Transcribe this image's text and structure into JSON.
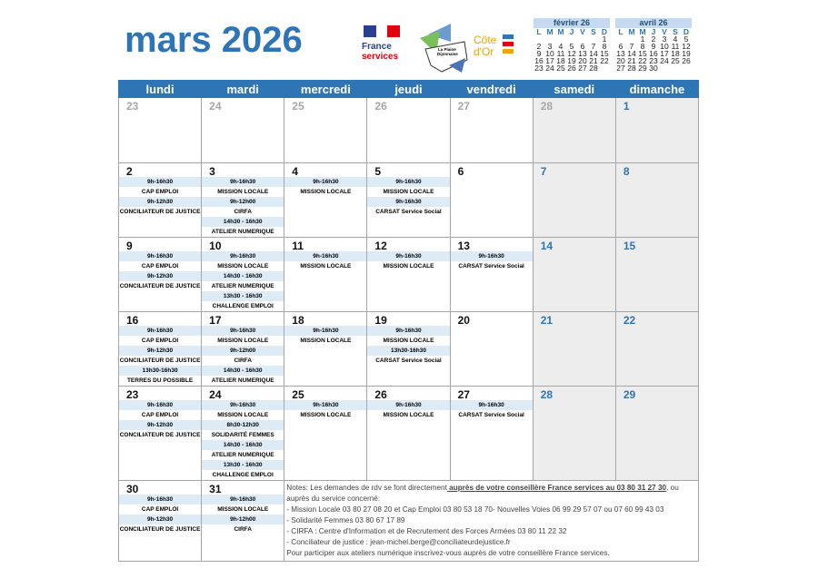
{
  "title": "mars 2026",
  "logos": [
    "France services",
    "La Plaine Dijonnaise",
    "Côte d'Or"
  ],
  "colors": {
    "header": "#2e75b6",
    "event_time_bg": "#ddebf7",
    "weekend_bg": "#ededed"
  },
  "mini_calendars": [
    {
      "title": "février 26",
      "days": [
        "L",
        "M",
        "M",
        "J",
        "V",
        "S",
        "D"
      ],
      "weeks": [
        [
          "",
          "",
          "",
          "",
          "",
          "",
          "1"
        ],
        [
          "2",
          "3",
          "4",
          "5",
          "6",
          "7",
          "8"
        ],
        [
          "9",
          "10",
          "11",
          "12",
          "13",
          "14",
          "15"
        ],
        [
          "16",
          "17",
          "18",
          "19",
          "20",
          "21",
          "22"
        ],
        [
          "23",
          "24",
          "25",
          "26",
          "27",
          "28",
          ""
        ]
      ]
    },
    {
      "title": "avril 26",
      "days": [
        "L",
        "M",
        "M",
        "J",
        "V",
        "S",
        "D"
      ],
      "weeks": [
        [
          "",
          "",
          "1",
          "2",
          "3",
          "4",
          "5"
        ],
        [
          "6",
          "7",
          "8",
          "9",
          "10",
          "11",
          "12"
        ],
        [
          "13",
          "14",
          "15",
          "16",
          "17",
          "18",
          "19"
        ],
        [
          "20",
          "21",
          "22",
          "23",
          "24",
          "25",
          "26"
        ],
        [
          "27",
          "28",
          "29",
          "30",
          "",
          "",
          ""
        ]
      ]
    }
  ],
  "weekdays": [
    "lundi",
    "mardi",
    "mercredi",
    "jeudi",
    "vendredi",
    "samedi",
    "dimanche"
  ],
  "weeks": [
    [
      {
        "n": "23",
        "prev": true,
        "ev": []
      },
      {
        "n": "24",
        "prev": true,
        "ev": []
      },
      {
        "n": "25",
        "prev": true,
        "ev": []
      },
      {
        "n": "26",
        "prev": true,
        "ev": []
      },
      {
        "n": "27",
        "prev": true,
        "ev": []
      },
      {
        "n": "28",
        "prev": true,
        "we": true,
        "ev": []
      },
      {
        "n": "1",
        "we": true,
        "blue": true,
        "ev": []
      }
    ],
    [
      {
        "n": "2",
        "ev": [
          [
            "9h-16h30",
            "CAP EMPLOI"
          ],
          [
            "9h-12h30",
            "CONCILIATEUR DE JUSTICE"
          ]
        ]
      },
      {
        "n": "3",
        "ev": [
          [
            "9h-16h30",
            "MISSION LOCALE"
          ],
          [
            "9h-12h00",
            "CIRFA"
          ],
          [
            "14h30 - 16h30",
            "ATELIER NUMERIQUE"
          ]
        ]
      },
      {
        "n": "4",
        "ev": [
          [
            "9h-16h30",
            "MISSION LOCALE"
          ]
        ]
      },
      {
        "n": "5",
        "ev": [
          [
            "9h-16h30",
            "MISSION LOCALE"
          ],
          [
            "9h-16h30",
            "CARSAT Service Social"
          ]
        ]
      },
      {
        "n": "6",
        "ev": []
      },
      {
        "n": "7",
        "we": true,
        "blue": true,
        "ev": []
      },
      {
        "n": "8",
        "we": true,
        "blue": true,
        "ev": []
      }
    ],
    [
      {
        "n": "9",
        "ev": [
          [
            "9h-16h30",
            "CAP EMPLOI"
          ],
          [
            "9h-12h30",
            "CONCILIATEUR DE JUSTICE"
          ]
        ]
      },
      {
        "n": "10",
        "ev": [
          [
            "9h-16h30",
            "MISSION LOCALE"
          ],
          [
            "14h30 - 16h30",
            "ATELIER NUMERIQUE"
          ],
          [
            "13h30 - 16h30",
            "CHALLENGE EMPLOI"
          ]
        ]
      },
      {
        "n": "11",
        "ev": [
          [
            "9h-16h30",
            "MISSION LOCALE"
          ]
        ]
      },
      {
        "n": "12",
        "ev": [
          [
            "9h-16h30",
            "MISSION LOCALE"
          ]
        ]
      },
      {
        "n": "13",
        "ev": [
          [
            "9h-16h30",
            "CARSAT Service Social"
          ]
        ]
      },
      {
        "n": "14",
        "we": true,
        "blue": true,
        "ev": []
      },
      {
        "n": "15",
        "we": true,
        "blue": true,
        "ev": []
      }
    ],
    [
      {
        "n": "16",
        "ev": [
          [
            "9h-16h30",
            "CAP EMPLOI"
          ],
          [
            "9h-12h30",
            "CONCILIATEUR DE JUSTICE"
          ],
          [
            "13h30-16h30",
            "TERRES DU POSSIBLE"
          ]
        ]
      },
      {
        "n": "17",
        "ev": [
          [
            "9h-16h30",
            "MISSION LOCALE"
          ],
          [
            "9h-12h00",
            "CIRFA"
          ],
          [
            "14h30 - 16h30",
            "ATELIER NUMERIQUE"
          ]
        ]
      },
      {
        "n": "18",
        "ev": [
          [
            "9h-16h30",
            "MISSION LOCALE"
          ]
        ]
      },
      {
        "n": "19",
        "ev": [
          [
            "9h-16h30",
            "MISSION LOCALE"
          ],
          [
            "13h30-16h30",
            "CARSAT Service Social"
          ]
        ]
      },
      {
        "n": "20",
        "ev": []
      },
      {
        "n": "21",
        "we": true,
        "blue": true,
        "ev": []
      },
      {
        "n": "22",
        "we": true,
        "blue": true,
        "ev": []
      }
    ],
    [
      {
        "n": "23",
        "ev": [
          [
            "9h-16h30",
            "CAP EMPLOI"
          ],
          [
            "9h-12h30",
            "CONCILIATEUR DE JUSTICE"
          ]
        ]
      },
      {
        "n": "24",
        "ev": [
          [
            "9h-16h30",
            "MISSION LOCALE"
          ],
          [
            "8h30-12h30",
            "SOLIDARITÉ FEMMES"
          ],
          [
            "14h30 - 16h30",
            "ATELIER NUMERIQUE"
          ],
          [
            "13h30 - 16h30",
            "CHALLENGE EMPLOI"
          ]
        ]
      },
      {
        "n": "25",
        "ev": [
          [
            "9h-16h30",
            "MISSION LOCALE"
          ]
        ]
      },
      {
        "n": "26",
        "ev": [
          [
            "9h-16h30",
            "MISSION LOCALE"
          ]
        ]
      },
      {
        "n": "27",
        "ev": [
          [
            "9h-16h30",
            "CARSAT Service Social"
          ]
        ]
      },
      {
        "n": "28",
        "we": true,
        "blue": true,
        "ev": []
      },
      {
        "n": "29",
        "we": true,
        "blue": true,
        "ev": []
      }
    ],
    [
      {
        "n": "30",
        "ev": [
          [
            "9h-16h30",
            "CAP EMPLOI"
          ],
          [
            "9h-12h30",
            "CONCILIATEUR DE JUSTICE"
          ]
        ]
      },
      {
        "n": "31",
        "ev": [
          [
            "9h-16h30",
            "MISSION LOCALE"
          ],
          [
            "9h-12h00",
            "CIRFA"
          ]
        ]
      }
    ]
  ],
  "notes": {
    "intro": "Notes: Les demandes de rdv se font directement",
    "bold": " auprès de votre conseillère France services au 03 80 31 27 30",
    "after": ", ou auprès du service concerné:",
    "lines": [
      "- Mission Locale 03 80 27 08 20 et Cap Emploi 03 80 53 18 70- Nouvelles Voies 06 99 29 57 07 ou 07 60 99 43 03",
      "- Solidarité Femmes 03 80 67 17 89",
      "- CIRFA : Centre d'Information et de Recrutement des Forces Armées 03 80 11 22 32",
      "- Conciliateur de justice : jean-michel.berge@conciliateurdejustice.fr",
      "Pour participer aux ateliers numérique inscrivez-vous auprès de votre conseillère France services."
    ]
  }
}
